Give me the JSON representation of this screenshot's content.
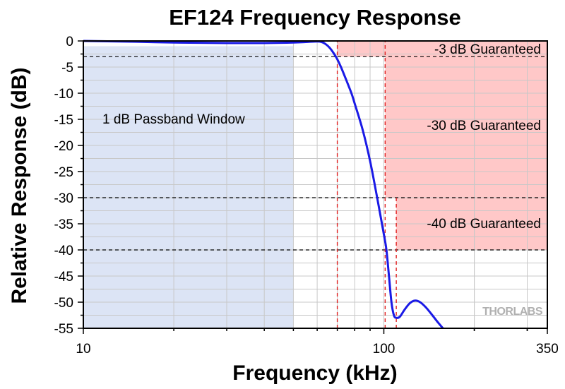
{
  "chart_data": {
    "type": "line",
    "title": "EF124 Frequency Response",
    "xlabel": "Frequency (kHz)",
    "ylabel": "Relative Response (dB)",
    "xscale": "log",
    "xlim": [
      10,
      350
    ],
    "ylim": [
      -55,
      0
    ],
    "x_ticks": [
      10,
      100,
      350
    ],
    "x_tick_labels": [
      "10",
      "100",
      "350"
    ],
    "y_ticks": [
      0,
      -5,
      -10,
      -15,
      -20,
      -25,
      -30,
      -35,
      -40,
      -45,
      -50,
      -55
    ],
    "y_tick_labels": [
      "0",
      "-5",
      "-10",
      "-15",
      "-20",
      "-25",
      "-30",
      "-35",
      "-40",
      "-45",
      "-50",
      "-55"
    ],
    "grid": true,
    "series": [
      {
        "color": "#1a1ae6",
        "x": [
          10,
          15,
          20,
          30,
          40,
          50,
          55,
          60,
          62,
          64,
          66,
          68,
          70,
          72,
          75,
          78,
          80,
          85,
          90,
          95,
          100,
          102,
          104,
          106,
          108,
          110,
          113,
          117,
          122,
          127,
          132,
          138,
          145,
          152,
          160
        ],
        "y": [
          0,
          -0.15,
          -0.3,
          -0.4,
          -0.4,
          -0.3,
          -0.2,
          -0.1,
          -0.2,
          -0.6,
          -1.3,
          -2.3,
          -3.5,
          -5,
          -7.5,
          -10,
          -12,
          -17,
          -23,
          -30,
          -37,
          -40,
          -45,
          -50,
          -52.5,
          -53,
          -52.8,
          -51.5,
          -50.2,
          -49.7,
          -50,
          -51,
          -52.5,
          -54,
          -55.5
        ]
      }
    ],
    "regions": [
      {
        "label": "1 dB Passband Window",
        "color": "#dce4f5",
        "x_range": [
          10,
          50
        ],
        "y_range": [
          -55,
          -1
        ]
      },
      {
        "label": "-3 dB Guaranteed",
        "color": "#ffc8c8",
        "x_range": [
          70,
          350
        ],
        "y_range": [
          -3,
          0
        ]
      },
      {
        "label": "-30 dB Guaranteed",
        "color": "#ffc8c8",
        "x_range": [
          101,
          350
        ],
        "y_range": [
          -30,
          -3
        ]
      },
      {
        "label": "-40 dB Guaranteed",
        "color": "#ffc8c8",
        "x_range": [
          110,
          350
        ],
        "y_range": [
          -40,
          -30
        ]
      }
    ],
    "reference_lines": {
      "horizontal_dB": [
        -3,
        -30,
        -40
      ],
      "vertical_kHz": [
        70,
        101,
        110
      ]
    },
    "watermark": "THORLABS"
  }
}
